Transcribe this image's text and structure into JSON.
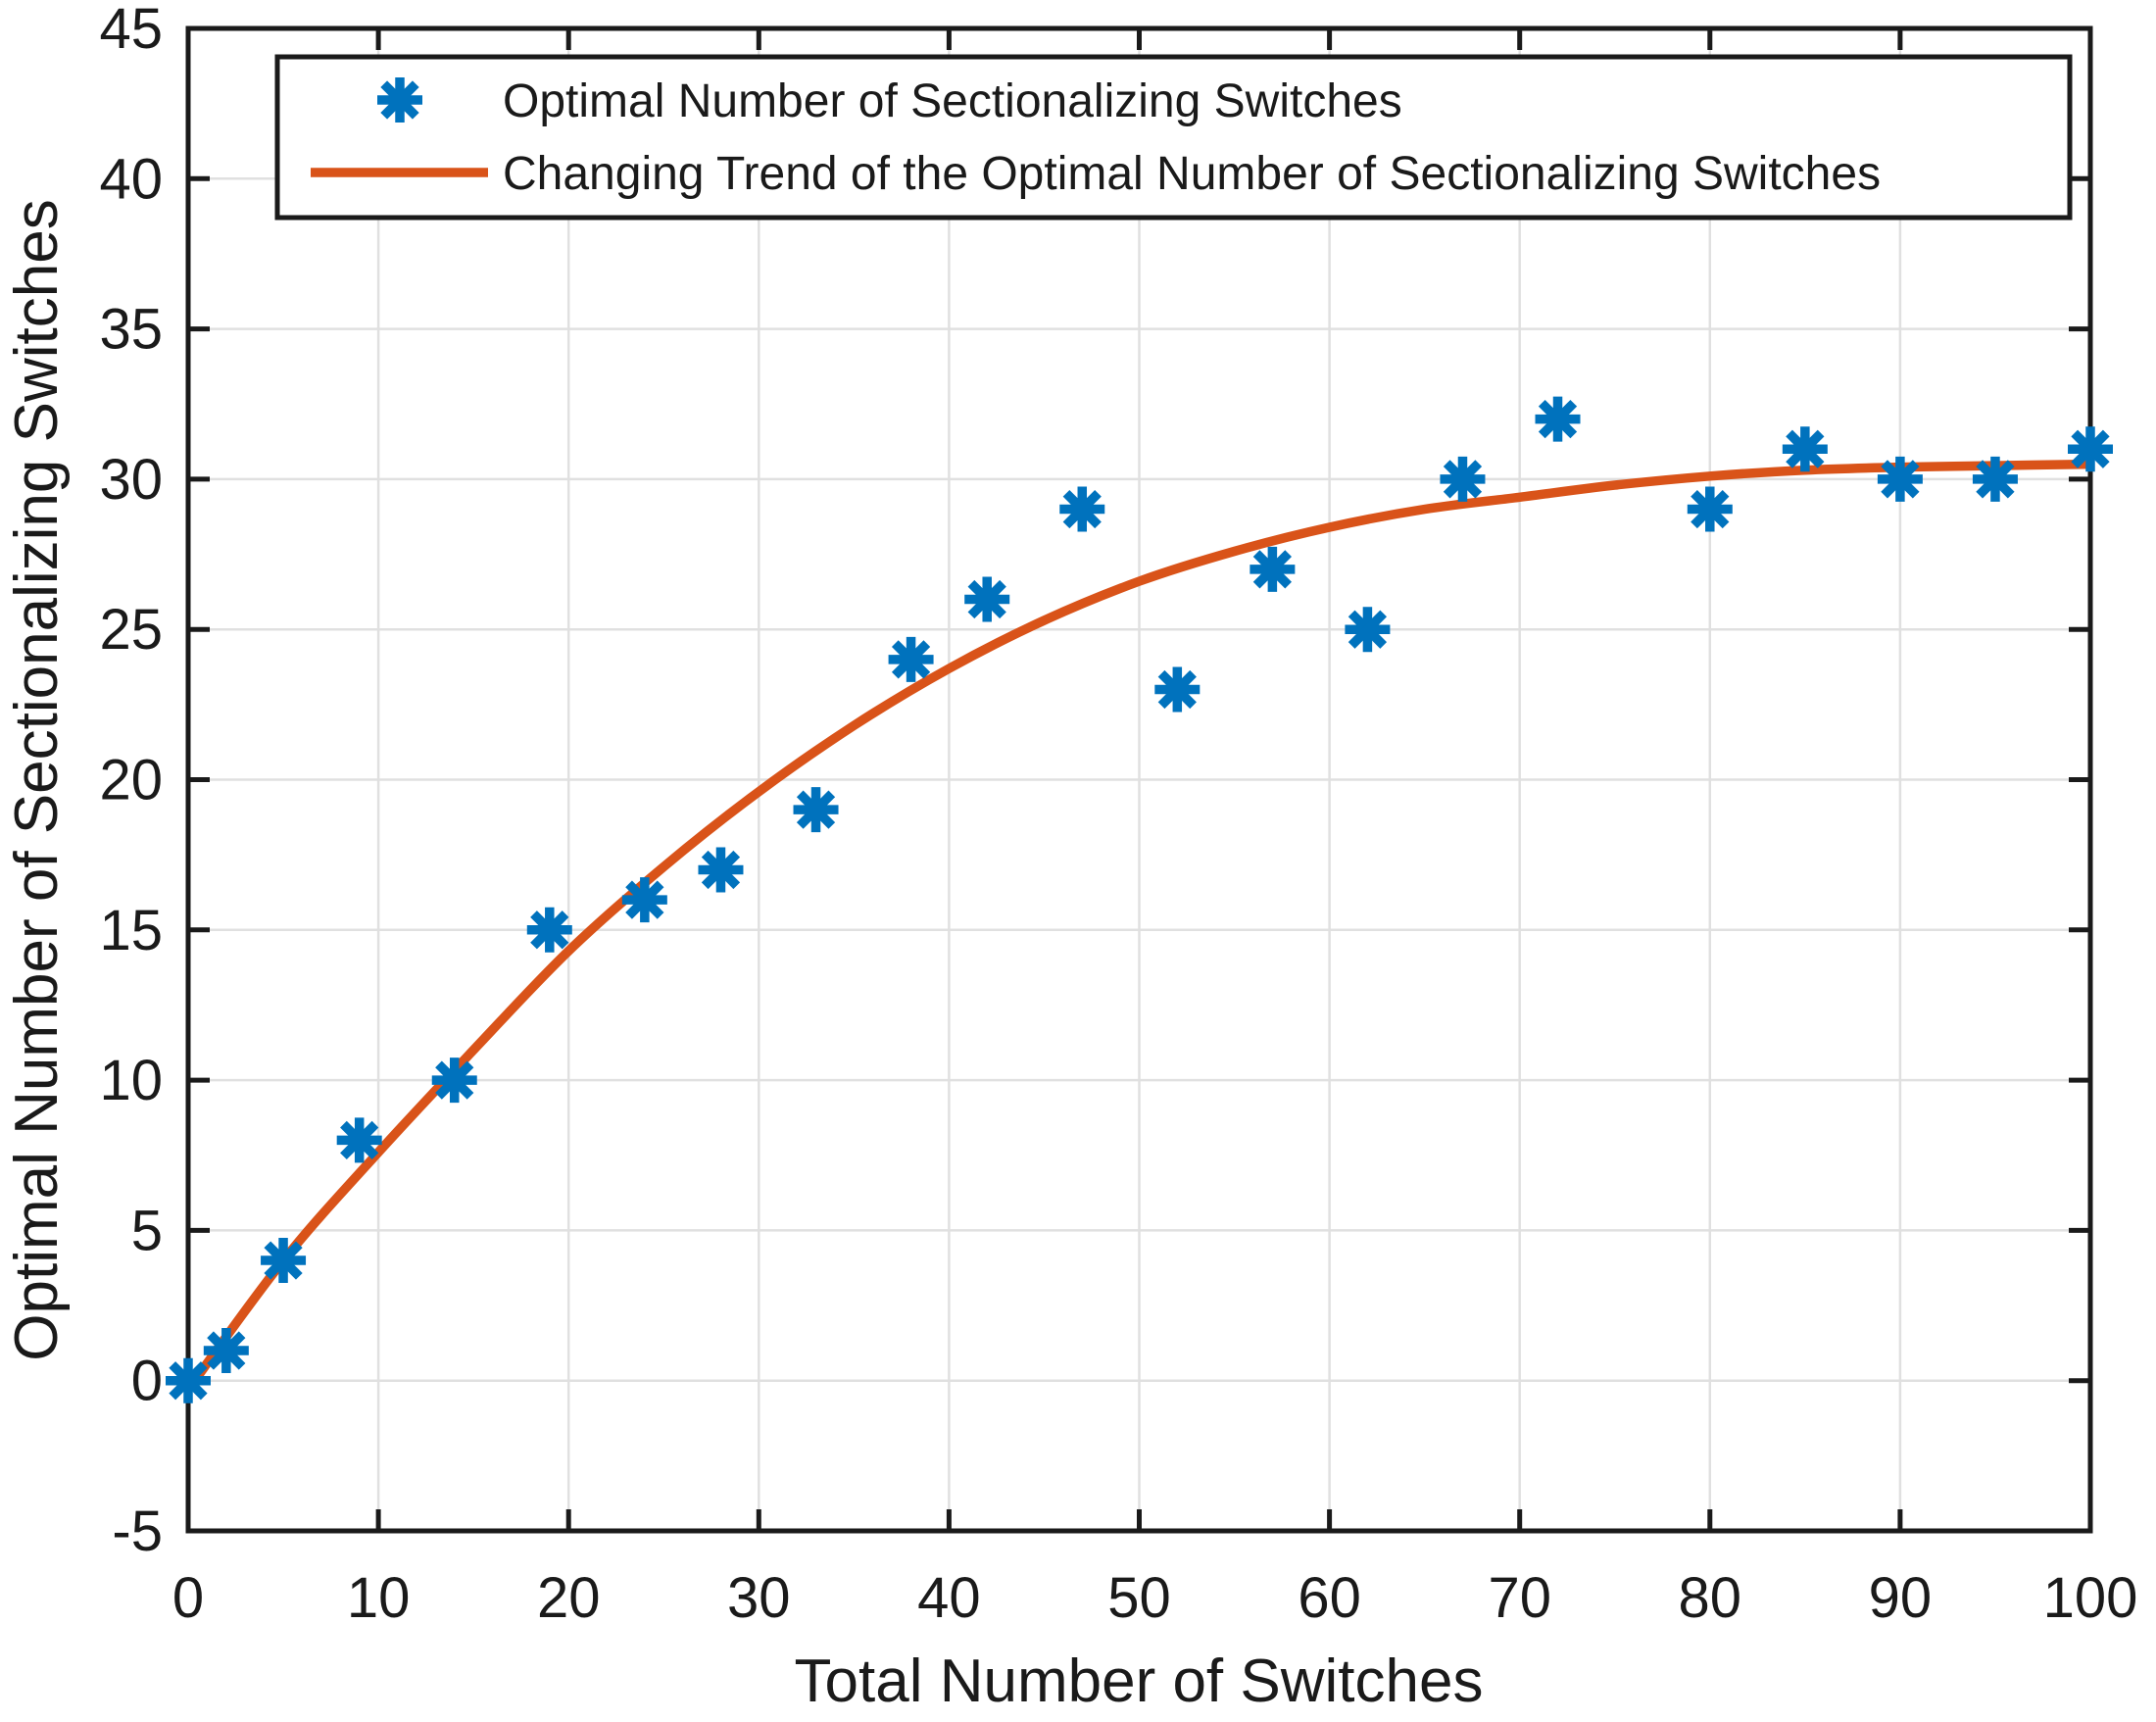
{
  "chart_data": {
    "type": "scatter",
    "title": "",
    "xlabel": "Total Number of Switches",
    "ylabel": "Optimal Number of Sectionalizing Switches",
    "xlim": [
      0,
      100
    ],
    "ylim": [
      -5,
      45
    ],
    "xticks": [
      0,
      10,
      20,
      30,
      40,
      50,
      60,
      70,
      80,
      90,
      100
    ],
    "yticks": [
      -5,
      0,
      5,
      10,
      15,
      20,
      25,
      30,
      35,
      40,
      45
    ],
    "grid": true,
    "legend_position": "top-left",
    "series": [
      {
        "name": "Optimal Number of Sectionalizing Switches",
        "type": "scatter",
        "marker": "asterisk",
        "color": "#0072BD",
        "x": [
          0,
          2,
          5,
          9,
          14,
          19,
          24,
          28,
          33,
          38,
          42,
          47,
          52,
          57,
          62,
          67,
          72,
          80,
          85,
          90,
          95,
          100
        ],
        "y": [
          0,
          1,
          4,
          8,
          10,
          15,
          16,
          17,
          19,
          24,
          26,
          29,
          23,
          27,
          25,
          30,
          32,
          29,
          31,
          30,
          30,
          31
        ]
      },
      {
        "name": "Changing Trend of the Optimal Number of Sectionalizing Switches",
        "type": "line",
        "color": "#D95319",
        "x": [
          0,
          5,
          10,
          15,
          20,
          25,
          30,
          35,
          40,
          45,
          50,
          55,
          60,
          65,
          70,
          75,
          80,
          85,
          90,
          95,
          100
        ],
        "y": [
          -0.3,
          4.0,
          7.6,
          11.0,
          14.3,
          17.1,
          19.6,
          21.8,
          23.7,
          25.3,
          26.6,
          27.6,
          28.4,
          29.0,
          29.4,
          29.8,
          30.1,
          30.3,
          30.4,
          30.45,
          30.5
        ]
      }
    ],
    "legend": [
      {
        "label": "Optimal Number of Sectionalizing Switches"
      },
      {
        "label": "Changing Trend of the Optimal Number of Sectionalizing Switches"
      }
    ],
    "colors": {
      "marker_blue": "#0072BD",
      "trend_orange": "#D95319",
      "grid": "#E0E0E0",
      "axis": "#1a1a1a",
      "background": "#FFFFFF"
    }
  }
}
